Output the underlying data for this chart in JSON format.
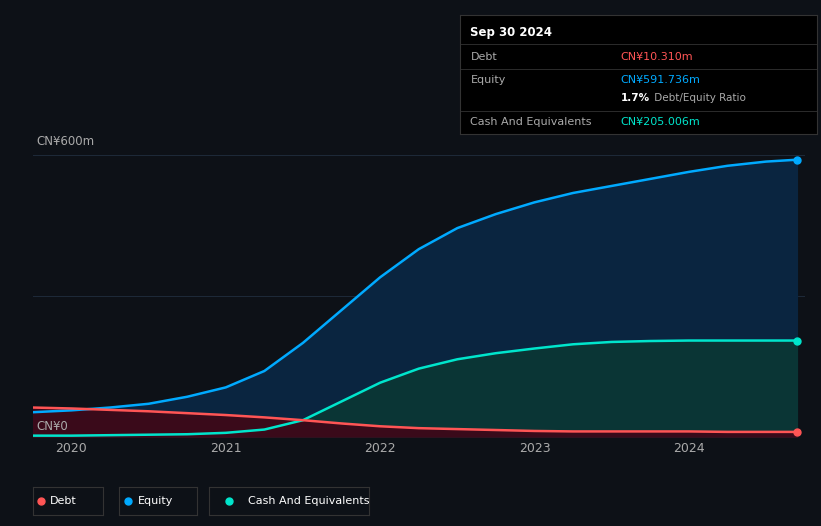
{
  "background_color": "#0d1117",
  "plot_bg_color": "#0d1117",
  "title": "Sep 30 2024",
  "ylabel_top": "CN¥600m",
  "ylabel_bottom": "CN¥0",
  "x_ticks": [
    2020,
    2021,
    2022,
    2023,
    2024
  ],
  "years": [
    2019.75,
    2020.0,
    2020.25,
    2020.5,
    2020.75,
    2021.0,
    2021.25,
    2021.5,
    2021.75,
    2022.0,
    2022.25,
    2022.5,
    2022.75,
    2023.0,
    2023.25,
    2023.5,
    2023.75,
    2024.0,
    2024.25,
    2024.5,
    2024.7
  ],
  "equity": [
    52,
    56,
    62,
    70,
    85,
    105,
    140,
    200,
    270,
    340,
    400,
    445,
    475,
    500,
    520,
    535,
    550,
    565,
    578,
    587,
    591
  ],
  "cash": [
    2,
    2,
    3,
    4,
    5,
    8,
    15,
    35,
    75,
    115,
    145,
    165,
    178,
    188,
    197,
    202,
    204,
    205,
    205,
    205,
    205
  ],
  "debt": [
    62,
    60,
    57,
    54,
    50,
    46,
    41,
    35,
    28,
    22,
    18,
    16,
    14,
    12,
    11,
    11,
    11,
    11,
    10,
    10,
    10
  ],
  "equity_color": "#00aaff",
  "equity_fill": "#0a2540",
  "cash_color": "#00e5cc",
  "cash_fill": "#0a3535",
  "debt_color": "#ff5555",
  "debt_fill": "#3a0a1a",
  "grid_color": "#1e2a3a",
  "text_color": "#aaaaaa",
  "tooltip_bg": "#000000",
  "tooltip_border": "#333333",
  "debt_val": "CN¥10.310m",
  "equity_val": "CN¥591.736m",
  "ratio_val": "1.7%",
  "cash_val": "CN¥205.006m",
  "legend_bg": "#0d1117",
  "legend_border": "#333333",
  "ylim": [
    0,
    640
  ],
  "xlim_left": 2019.75,
  "xlim_right": 2024.75
}
